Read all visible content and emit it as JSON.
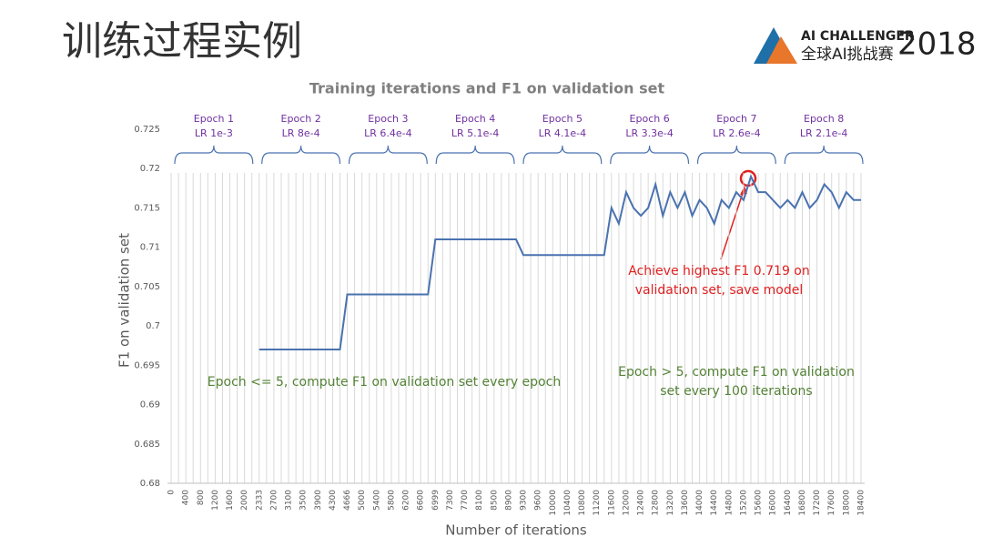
{
  "header": {
    "title": "训练过程实例",
    "logo_top": "AI CHALLENGER",
    "logo_bottom": "全球AI挑战赛",
    "logo_year": "2018"
  },
  "chart_data": {
    "type": "line",
    "title": "Training iterations and F1 on validation set",
    "x_label": "Number of iterations",
    "y_label": "F1 on validation set",
    "categories": [
      "0",
      null,
      "400",
      null,
      "800",
      null,
      "1200",
      null,
      "1600",
      null,
      "2000",
      null,
      "2333",
      null,
      "2700",
      null,
      "3100",
      null,
      "3500",
      null,
      "3900",
      null,
      "4300",
      null,
      "4666",
      null,
      "5000",
      null,
      "5400",
      null,
      "5800",
      null,
      "6200",
      null,
      "6600",
      null,
      "6999",
      null,
      "7300",
      null,
      "7700",
      null,
      "8100",
      null,
      "8500",
      null,
      "8900",
      null,
      "9300",
      null,
      "9600",
      null,
      "10000",
      null,
      "10400",
      null,
      "10800",
      null,
      "11200",
      null,
      "11600",
      null,
      "12000",
      null,
      "12400",
      null,
      "12800",
      null,
      "13200",
      null,
      "13600",
      null,
      "14000",
      null,
      "14400",
      null,
      "14800",
      null,
      "15200",
      null,
      "15600",
      null,
      "16000",
      null,
      "16400",
      null,
      "16800",
      null,
      "17200",
      null,
      "17600",
      null,
      "18000",
      null,
      "18400"
    ],
    "values": [
      null,
      null,
      null,
      null,
      null,
      null,
      null,
      null,
      null,
      null,
      null,
      null,
      0.697,
      0.697,
      0.697,
      0.697,
      0.697,
      0.697,
      0.697,
      0.697,
      0.697,
      0.697,
      0.697,
      0.697,
      0.704,
      0.704,
      0.704,
      0.704,
      0.704,
      0.704,
      0.704,
      0.704,
      0.704,
      0.704,
      0.704,
      0.704,
      0.711,
      0.711,
      0.711,
      0.711,
      0.711,
      0.711,
      0.711,
      0.711,
      0.711,
      0.711,
      0.711,
      0.711,
      0.709,
      0.709,
      0.709,
      0.709,
      0.709,
      0.709,
      0.709,
      0.709,
      0.709,
      0.709,
      0.709,
      0.709,
      0.715,
      0.713,
      0.717,
      0.715,
      0.714,
      0.715,
      0.718,
      0.714,
      0.717,
      0.715,
      0.717,
      0.714,
      0.716,
      0.715,
      0.713,
      0.716,
      0.715,
      0.717,
      0.716,
      0.719,
      0.717,
      0.717,
      0.716,
      0.715,
      0.716,
      0.715,
      0.717,
      0.715,
      0.716,
      0.718,
      0.717,
      0.715,
      0.717,
      0.716,
      0.716
    ],
    "color": "#4a72b0",
    "ylim": [
      0.68,
      0.725
    ],
    "yticks": [
      0.68,
      0.685,
      0.69,
      0.695,
      0.7,
      0.705,
      0.71,
      0.715,
      0.72,
      0.725
    ],
    "vertical_grid": true,
    "epochs": [
      {
        "name": "Epoch 1",
        "lr": "LR 1e-3"
      },
      {
        "name": "Epoch 2",
        "lr": "LR 8e-4"
      },
      {
        "name": "Epoch 3",
        "lr": "LR 6.4e-4"
      },
      {
        "name": "Epoch 4",
        "lr": "LR 5.1e-4"
      },
      {
        "name": "Epoch 5",
        "lr": "LR 4.1e-4"
      },
      {
        "name": "Epoch 6",
        "lr": "LR 3.3e-4"
      },
      {
        "name": "Epoch 7",
        "lr": "LR 2.6e-4"
      },
      {
        "name": "Epoch 8",
        "lr": "LR 2.1e-4"
      }
    ],
    "annotations": {
      "best": [
        "Achieve highest F1 0.719 on",
        "validation set, save model"
      ],
      "early": [
        "Epoch <= 5, compute F1 on validation set every epoch"
      ],
      "late": [
        "Epoch > 5, compute F1 on validation",
        "set every 100 iterations"
      ]
    }
  }
}
